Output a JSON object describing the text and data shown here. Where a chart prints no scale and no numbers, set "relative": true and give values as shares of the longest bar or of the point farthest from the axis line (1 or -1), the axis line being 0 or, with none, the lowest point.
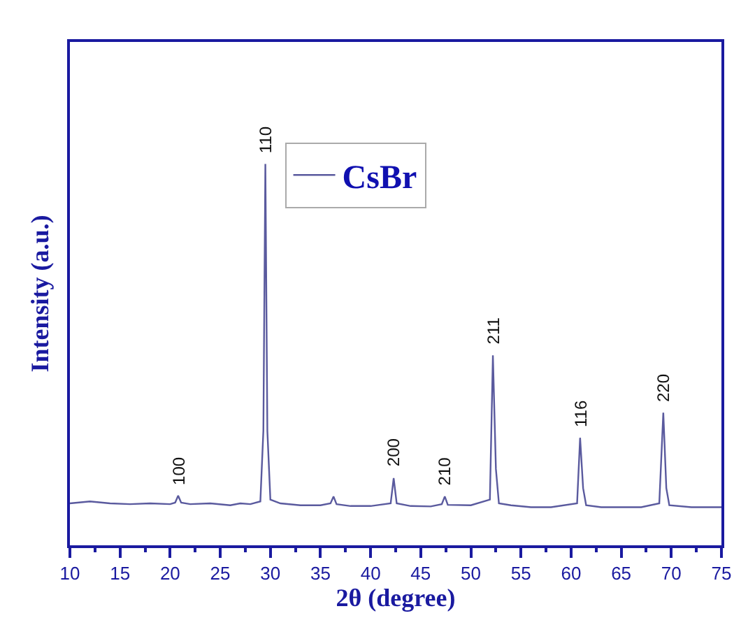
{
  "chart_data": {
    "type": "line",
    "relative": true,
    "xlabel": "2θ (degree)",
    "ylabel": "Intensity (a.u.)",
    "xlim": [
      10,
      75
    ],
    "xticks": [
      10,
      15,
      20,
      25,
      30,
      35,
      40,
      45,
      50,
      55,
      60,
      65,
      70,
      75
    ],
    "legend": "top",
    "marker": "none",
    "line_style": "solid",
    "series": [
      {
        "name": "CsBr",
        "color": "#5a5a9e",
        "x": [
          10,
          12,
          14,
          16,
          18,
          20,
          20.5,
          20.8,
          21.1,
          22,
          24,
          26,
          27,
          28,
          29,
          29.3,
          29.5,
          29.7,
          30,
          31,
          33,
          35,
          36,
          36.3,
          36.6,
          38,
          40,
          42,
          42.3,
          42.6,
          44,
          46,
          47.1,
          47.4,
          47.7,
          50,
          51.9,
          52.2,
          52.5,
          52.8,
          54,
          56,
          58,
          60.6,
          60.9,
          61.2,
          61.5,
          63,
          65,
          67,
          68.8,
          69.2,
          69.5,
          69.8,
          72,
          74,
          75
        ],
        "values": [
          0.11,
          0.115,
          0.11,
          0.108,
          0.11,
          0.108,
          0.112,
          0.13,
          0.112,
          0.108,
          0.11,
          0.105,
          0.11,
          0.108,
          0.115,
          0.3,
          1.0,
          0.3,
          0.12,
          0.11,
          0.105,
          0.105,
          0.11,
          0.128,
          0.108,
          0.103,
          0.103,
          0.11,
          0.176,
          0.11,
          0.103,
          0.102,
          0.108,
          0.128,
          0.106,
          0.105,
          0.12,
          0.498,
          0.2,
          0.11,
          0.105,
          0.1,
          0.1,
          0.11,
          0.282,
          0.15,
          0.105,
          0.1,
          0.1,
          0.1,
          0.11,
          0.348,
          0.15,
          0.105,
          0.1,
          0.1,
          0.1
        ]
      }
    ],
    "annotations": [
      {
        "text": "100",
        "x": 20.8,
        "y": 0.13
      },
      {
        "text": "110",
        "x": 29.5,
        "y": 1.0
      },
      {
        "text": "200",
        "x": 42.3,
        "y": 0.176
      },
      {
        "text": "210",
        "x": 47.4,
        "y": 0.128
      },
      {
        "text": "211",
        "x": 52.2,
        "y": 0.498
      },
      {
        "text": "116",
        "x": 60.9,
        "y": 0.282
      },
      {
        "text": "220",
        "x": 69.2,
        "y": 0.348
      }
    ]
  }
}
